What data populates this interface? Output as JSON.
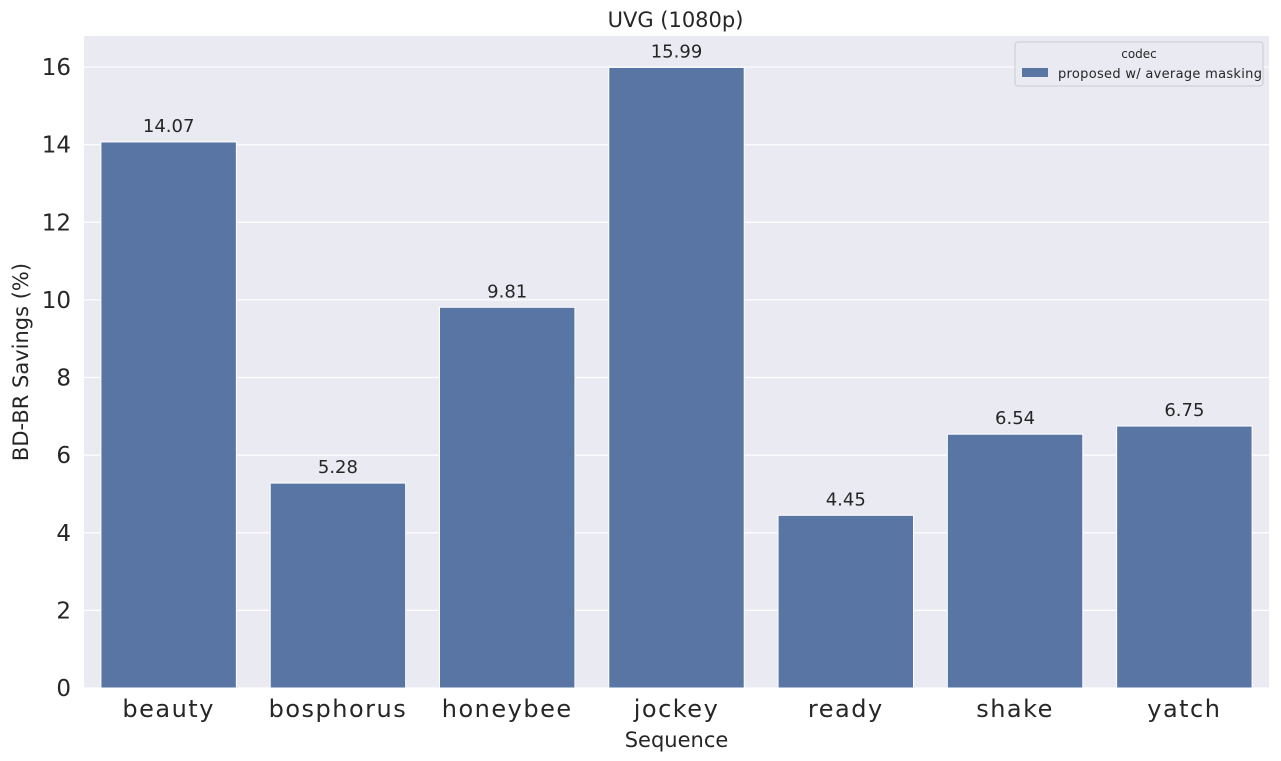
{
  "chart_data": {
    "type": "bar",
    "title": "UVG (1080p)",
    "xlabel": "Sequence",
    "ylabel": "BD-BR Savings (%)",
    "categories": [
      "beauty",
      "bosphorus",
      "honeybee",
      "jockey",
      "ready",
      "shake",
      "yatch"
    ],
    "series": [
      {
        "name": "proposed w/ average masking",
        "values": [
          14.07,
          5.28,
          9.81,
          15.99,
          4.45,
          6.54,
          6.75
        ],
        "labels": [
          "14.07",
          "5.28",
          "9.81",
          "15.99",
          "4.45",
          "6.54",
          "6.75"
        ]
      }
    ],
    "ylim": [
      0,
      16.8
    ],
    "yticks": [
      0,
      2,
      4,
      6,
      8,
      10,
      12,
      14,
      16
    ],
    "ytick_labels": [
      "0",
      "2",
      "4",
      "6",
      "8",
      "10",
      "12",
      "14",
      "16"
    ],
    "grid": true,
    "legend": {
      "title": "codec",
      "placement": "top-right"
    },
    "colors": {
      "bar": "#5975a4",
      "background": "#eaeaf2",
      "grid": "#ffffff"
    }
  }
}
